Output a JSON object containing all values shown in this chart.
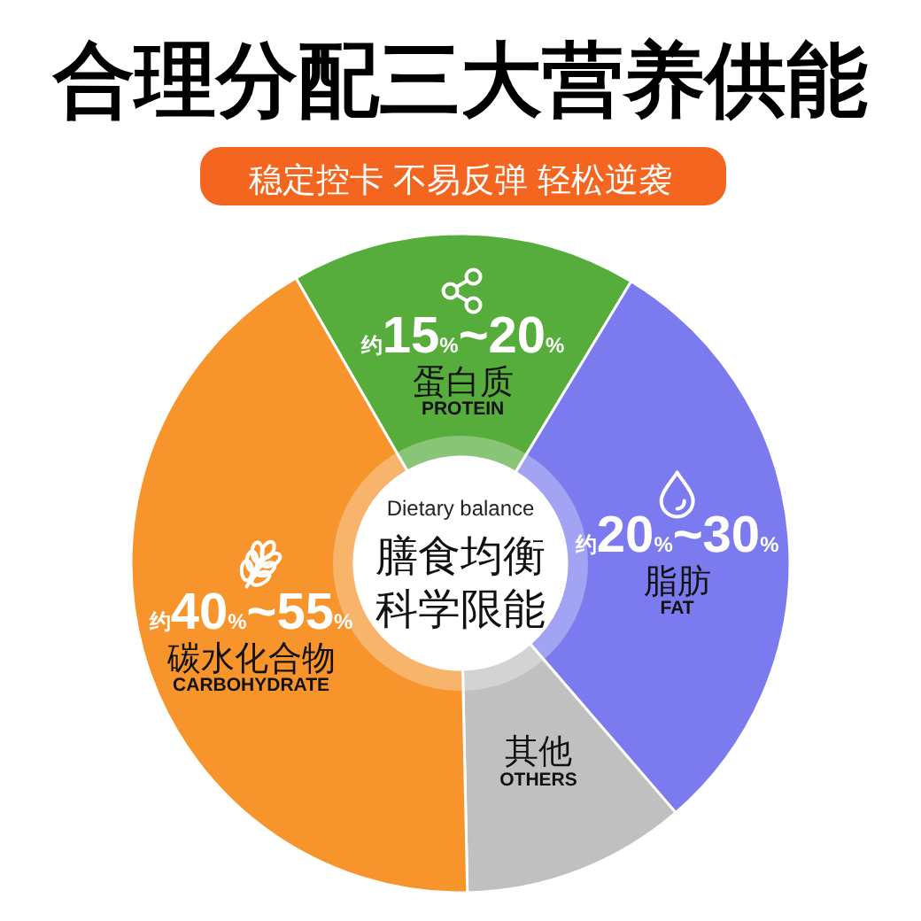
{
  "chart_data": {
    "type": "donut",
    "title": "合理分配三大营养供能",
    "subtitle": "稳定控卡 不易反弹 轻松逆袭",
    "categories": [
      "蛋白质\nPROTEIN",
      "脂肪\nFAT",
      "其他\nOTHERS",
      "碳水化合物\nCARBOHYDRATE"
    ],
    "values": [
      17,
      30,
      11,
      42
    ],
    "colors": [
      "#57ad3c",
      "#7b7bef",
      "#c0c0c0",
      "#f7942b"
    ],
    "annotations": [
      {
        "text": "约15%~20%",
        "x": "蛋白质\nPROTEIN"
      },
      {
        "text": "约20%~30%",
        "x": "脂肪\nFAT"
      },
      {
        "text": "约40%~55%",
        "x": "碳水化合物\nCARBOHYDRATE"
      },
      "Dietary balance",
      "膳食均衡",
      "科学限能"
    ]
  }
}
